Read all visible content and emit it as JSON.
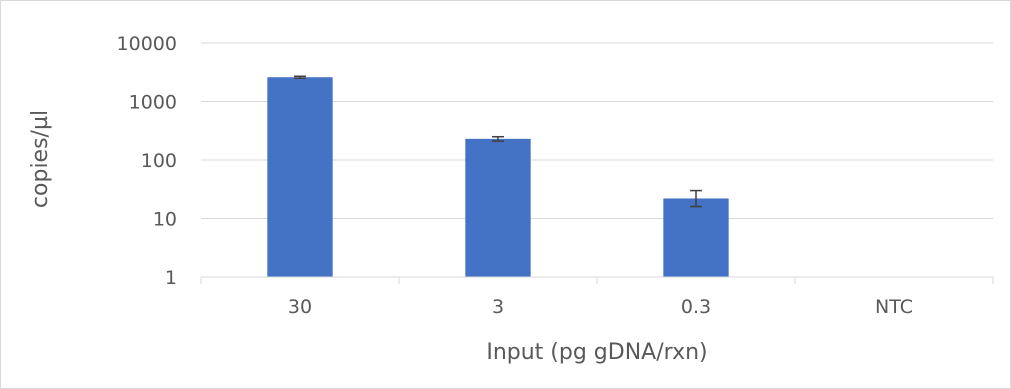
{
  "chart_data": {
    "type": "bar",
    "scale": "log10",
    "categories": [
      "30",
      "3",
      "0.3",
      "NTC"
    ],
    "values": [
      2600,
      230,
      22,
      null
    ],
    "error_bars": [
      {
        "low": 2500,
        "high": 2700
      },
      {
        "low": 210,
        "high": 250
      },
      {
        "low": 16,
        "high": 30
      },
      null
    ],
    "xlabel": "Input (pg gDNA/rxn)",
    "ylabel": "copies/µl",
    "ylim": [
      1,
      10000
    ],
    "yticks": [
      "1",
      "10",
      "100",
      "1000",
      "10000"
    ],
    "grid": true,
    "colors": {
      "bar": "#4472c4",
      "grid": "#d9d9d9",
      "error_bar": "#404040",
      "text": "#595959"
    }
  }
}
